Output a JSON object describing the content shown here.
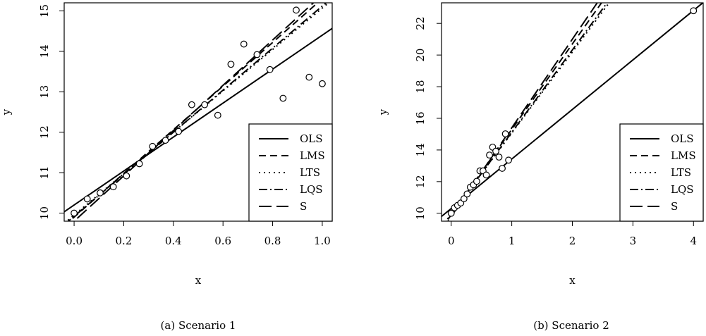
{
  "chart_data": [
    {
      "type": "scatter",
      "caption": "(a)  Scenario 1",
      "xlabel": "x",
      "ylabel": "y",
      "xlim": [
        -0.04,
        1.04
      ],
      "ylim": [
        9.8,
        15.2
      ],
      "xticks": [
        "0.0",
        "0.2",
        "0.4",
        "0.6",
        "0.8",
        "1.0"
      ],
      "xtick_values": [
        0,
        0.2,
        0.4,
        0.6,
        0.8,
        1.0
      ],
      "yticks": [
        "10",
        "11",
        "12",
        "13",
        "14",
        "15"
      ],
      "ytick_values": [
        10,
        11,
        12,
        13,
        14,
        15
      ],
      "points": [
        [
          0.0,
          10.0
        ],
        [
          0.053,
          10.35
        ],
        [
          0.105,
          10.5
        ],
        [
          0.158,
          10.65
        ],
        [
          0.211,
          10.92
        ],
        [
          0.263,
          11.22
        ],
        [
          0.316,
          11.65
        ],
        [
          0.368,
          11.8
        ],
        [
          0.421,
          12.02
        ],
        [
          0.474,
          12.68
        ],
        [
          0.526,
          12.68
        ],
        [
          0.579,
          12.42
        ],
        [
          0.632,
          13.68
        ],
        [
          0.684,
          14.18
        ],
        [
          0.737,
          13.92
        ],
        [
          0.789,
          13.55
        ],
        [
          0.842,
          12.84
        ],
        [
          0.895,
          15.02
        ],
        [
          0.947,
          13.36
        ],
        [
          1.0,
          13.2
        ]
      ],
      "fits": [
        {
          "name": "OLS",
          "intercept": 10.2,
          "slope": 4.2,
          "dash": ""
        },
        {
          "name": "LMS",
          "intercept": 9.9,
          "slope": 5.4,
          "dash": "10,6"
        },
        {
          "name": "LTS",
          "intercept": 9.95,
          "slope": 5.12,
          "dash": "2,5"
        },
        {
          "name": "LQS",
          "intercept": 9.92,
          "slope": 5.2,
          "dash": "12,4,2,4"
        },
        {
          "name": "S",
          "intercept": 9.8,
          "slope": 5.6,
          "dash": "18,7"
        }
      ],
      "legend": [
        "OLS",
        "LMS",
        "LTS",
        "LQS",
        "S"
      ],
      "legend_position": "bottom-right"
    },
    {
      "type": "scatter",
      "caption": "(b)  Scenario 2",
      "xlabel": "x",
      "ylabel": "y",
      "xlim": [
        -0.16,
        4.16
      ],
      "ylim": [
        9.5,
        23.3
      ],
      "xticks": [
        "0",
        "1",
        "2",
        "3",
        "4"
      ],
      "xtick_values": [
        0,
        1,
        2,
        3,
        4
      ],
      "yticks": [
        "10",
        "12",
        "14",
        "16",
        "18",
        "20",
        "22"
      ],
      "ytick_values": [
        10,
        12,
        14,
        16,
        18,
        20,
        22
      ],
      "points": [
        [
          0.0,
          10.0
        ],
        [
          0.053,
          10.35
        ],
        [
          0.105,
          10.5
        ],
        [
          0.158,
          10.65
        ],
        [
          0.211,
          10.92
        ],
        [
          0.263,
          11.22
        ],
        [
          0.316,
          11.65
        ],
        [
          0.368,
          11.8
        ],
        [
          0.421,
          12.02
        ],
        [
          0.474,
          12.68
        ],
        [
          0.526,
          12.68
        ],
        [
          0.579,
          12.42
        ],
        [
          0.632,
          13.68
        ],
        [
          0.684,
          14.18
        ],
        [
          0.737,
          13.92
        ],
        [
          0.789,
          13.55
        ],
        [
          0.842,
          12.84
        ],
        [
          0.895,
          15.02
        ],
        [
          0.947,
          13.36
        ],
        [
          4.0,
          22.8
        ]
      ],
      "fits": [
        {
          "name": "OLS",
          "intercept": 10.3,
          "slope": 3.13,
          "dash": ""
        },
        {
          "name": "LMS",
          "intercept": 9.9,
          "slope": 5.4,
          "dash": "10,6"
        },
        {
          "name": "LTS",
          "intercept": 9.95,
          "slope": 5.12,
          "dash": "2,5"
        },
        {
          "name": "LQS",
          "intercept": 9.92,
          "slope": 5.2,
          "dash": "12,4,2,4"
        },
        {
          "name": "S",
          "intercept": 9.8,
          "slope": 5.6,
          "dash": "18,7"
        }
      ],
      "legend": [
        "OLS",
        "LMS",
        "LTS",
        "LQS",
        "S"
      ],
      "legend_position": "bottom-right"
    }
  ]
}
